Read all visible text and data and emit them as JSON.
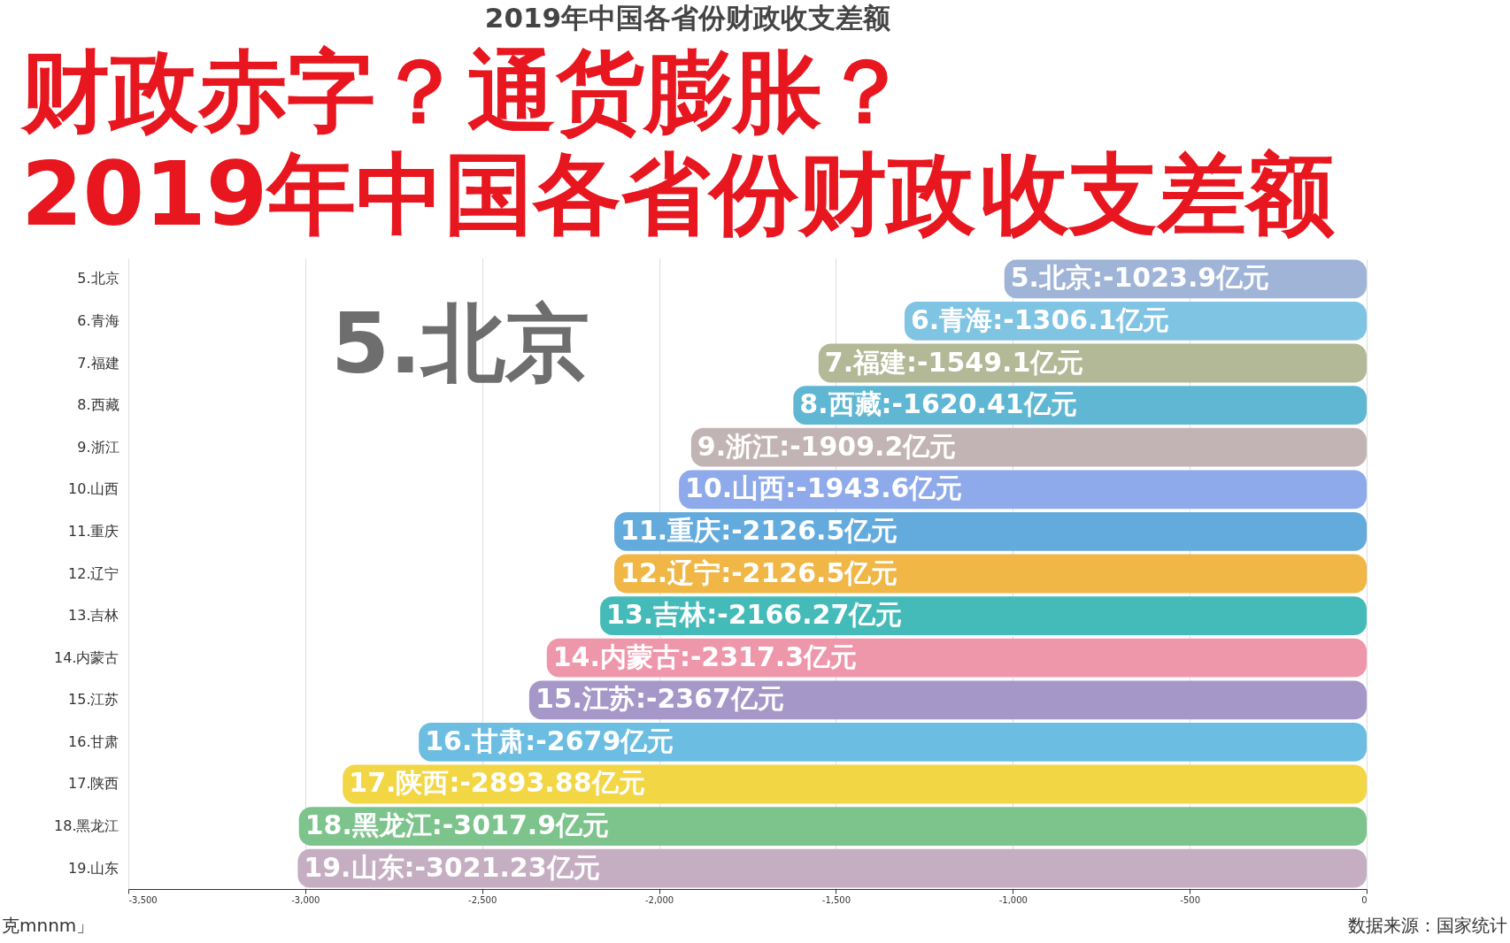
{
  "chart_data": {
    "type": "bar",
    "orientation": "horizontal",
    "title": "2019年中国各省份财政收支差额",
    "categories": [
      "5.北京",
      "6.青海",
      "7.福建",
      "8.西藏",
      "9.浙江",
      "10.山西",
      "11.重庆",
      "12.辽宁",
      "13.吉林",
      "14.内蒙古",
      "15.江苏",
      "16.甘肃",
      "17.陕西",
      "18.黑龙江",
      "19.山东"
    ],
    "values": [
      -1023.9,
      -1306.1,
      -1549.1,
      -1620.41,
      -1909.2,
      -1943.6,
      -2126.5,
      -2126.5,
      -2166.27,
      -2317.3,
      -2367,
      -2679,
      -2893.88,
      -3017.9,
      -3021.23
    ],
    "colors": [
      "#9fb4d6",
      "#80c4e4",
      "#b3b896",
      "#5fb7d3",
      "#c2b4b4",
      "#8eaaea",
      "#63abdc",
      "#f0b646",
      "#44bbb8",
      "#ee97ab",
      "#a597c8",
      "#6cbde2",
      "#f2d644",
      "#7cc38c",
      "#c6aec2"
    ],
    "value_labels": [
      "5.北京:-1023.9亿元",
      "6.青海:-1306.1亿元",
      "7.福建:-1549.1亿元",
      "8.西藏:-1620.41亿元",
      "9.浙江:-1909.2亿元",
      "10.山西:-1943.6亿元",
      "11.重庆:-2126.5亿元",
      "12.辽宁:-2126.5亿元",
      "13.吉林:-2166.27亿元",
      "14.内蒙古:-2317.3亿元",
      "15.江苏:-2367亿元",
      "16.甘肃:-2679亿元",
      "17.陕西:-2893.88亿元",
      "18.黑龙江:-3017.9亿元",
      "19.山东:-3021.23亿元"
    ],
    "xlim": [
      -3500,
      0
    ],
    "xticks": [
      {
        "value": -3500,
        "label": "-3,500"
      },
      {
        "value": -3000,
        "label": "-3,000"
      },
      {
        "value": -2500,
        "label": "-2,500"
      },
      {
        "value": -2000,
        "label": "-2,000"
      },
      {
        "value": -1500,
        "label": "-1,500"
      },
      {
        "value": -1000,
        "label": "-1,000"
      },
      -500,
      0
    ],
    "grid": "x",
    "annotations": [
      "财政赤字？",
      "通货膨胀？",
      "2019年中国各省份财政",
      "收支差额",
      "5.北京",
      "克mnnm」",
      "数据来源：国家统计"
    ]
  }
}
